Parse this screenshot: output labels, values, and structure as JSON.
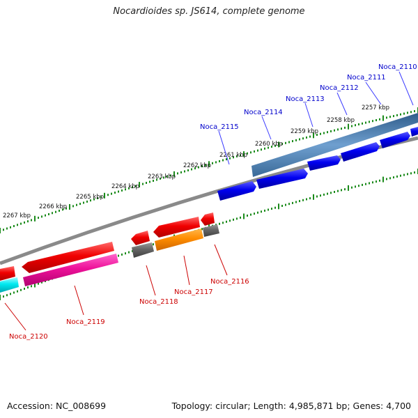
{
  "title": "Nocardioides sp. JS614, complete genome",
  "footer": {
    "accession": "Accession: NC_008699",
    "topology": "Topology: circular; Length: 4,985,871 bp; Genes: 4,700"
  },
  "scale_labels": [
    "2257 kbp",
    "2258 kbp",
    "2259 kbp",
    "2260 kbp",
    "2261 kbp",
    "2262 kbp",
    "2263 kbp",
    "2264 kbp",
    "2265 kbp",
    "2266 kbp",
    "2267 kbp"
  ],
  "genes_forward": [
    "Noca_2110",
    "Noca_2111",
    "Noca_2112",
    "Noca_2113",
    "Noca_2114",
    "Noca_2115"
  ],
  "genes_reverse": [
    "Noca_2116",
    "Noca_2117",
    "Noca_2118",
    "Noca_2119",
    "Noca_2120"
  ],
  "colors": {
    "forward_label": "#0000cc",
    "reverse_label": "#cc0000",
    "forward_gene": "#0000e6",
    "forward_gene_highlight": "#4f7fb5",
    "reverse_gene": "#ee0000",
    "reverse_pink": "#ee2299",
    "reverse_orange": "#ff8800",
    "reverse_cyan": "#00e5ee",
    "gray_gene": "#666666",
    "backbone": "#808080",
    "ticks": "#1a8a1a"
  }
}
